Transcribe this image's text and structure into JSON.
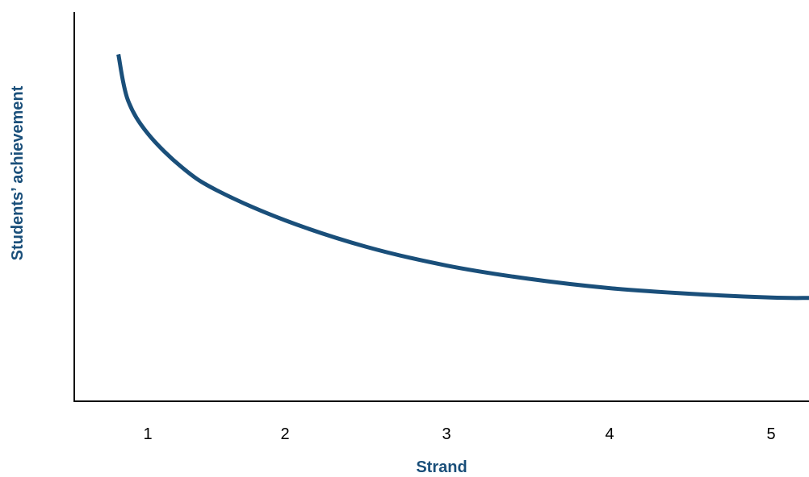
{
  "chart_data": {
    "type": "line",
    "title": "",
    "xlabel": "Strand",
    "ylabel": "Students’ achievement",
    "categories": [
      "1",
      "2",
      "3",
      "4",
      "5"
    ],
    "x": [
      0.78,
      0.85,
      1.0,
      1.25,
      1.5,
      2.0,
      2.5,
      3.0,
      3.5,
      4.0,
      4.5,
      5.0,
      5.22
    ],
    "series": [
      {
        "values": [
          92,
          80,
          71,
          62,
          56,
          48,
          41,
          36,
          32.5,
          30,
          28.5,
          27.5,
          27.4
        ]
      }
    ],
    "xlim": [
      0.45,
      5.22
    ],
    "ylim": [
      0,
      100
    ],
    "grid": false,
    "colors": {
      "line": "#1a4f7a",
      "axis": "#000000",
      "label": "#1a4f7a"
    }
  }
}
